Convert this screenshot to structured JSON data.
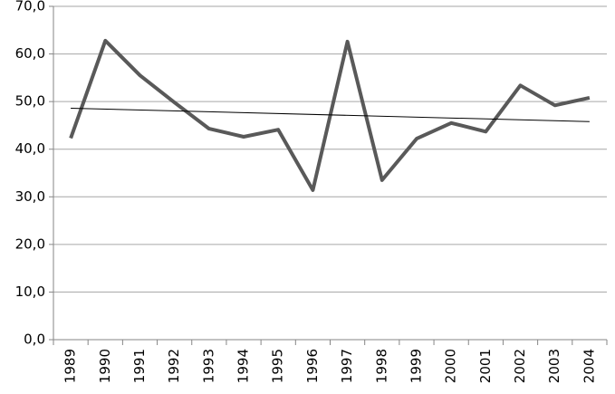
{
  "chart_data": {
    "type": "line",
    "categories": [
      "1989",
      "1990",
      "1991",
      "1992",
      "1993",
      "1994",
      "1995",
      "1996",
      "1997",
      "1998",
      "1999",
      "2000",
      "2001",
      "2002",
      "2003",
      "2004"
    ],
    "series": [
      {
        "color": "#595959",
        "values": [
          42.3,
          62.8,
          55.5,
          49.8,
          44.3,
          42.6,
          44.1,
          31.4,
          62.6,
          33.5,
          42.2,
          45.5,
          43.7,
          53.4,
          49.2,
          50.8
        ]
      }
    ],
    "trendline": {
      "values": [
        48.6,
        45.8
      ],
      "color": "#000000"
    },
    "ylim": [
      0,
      70
    ],
    "yticks": [
      {
        "value": 0,
        "label": "0,0"
      },
      {
        "value": 10,
        "label": "10,0"
      },
      {
        "value": 20,
        "label": "20,0"
      },
      {
        "value": 30,
        "label": "30,0"
      },
      {
        "value": 40,
        "label": "40,0"
      },
      {
        "value": 50,
        "label": "50,0"
      },
      {
        "value": 60,
        "label": "60,0"
      },
      {
        "value": 70,
        "label": "70,0"
      }
    ],
    "grid": true
  }
}
